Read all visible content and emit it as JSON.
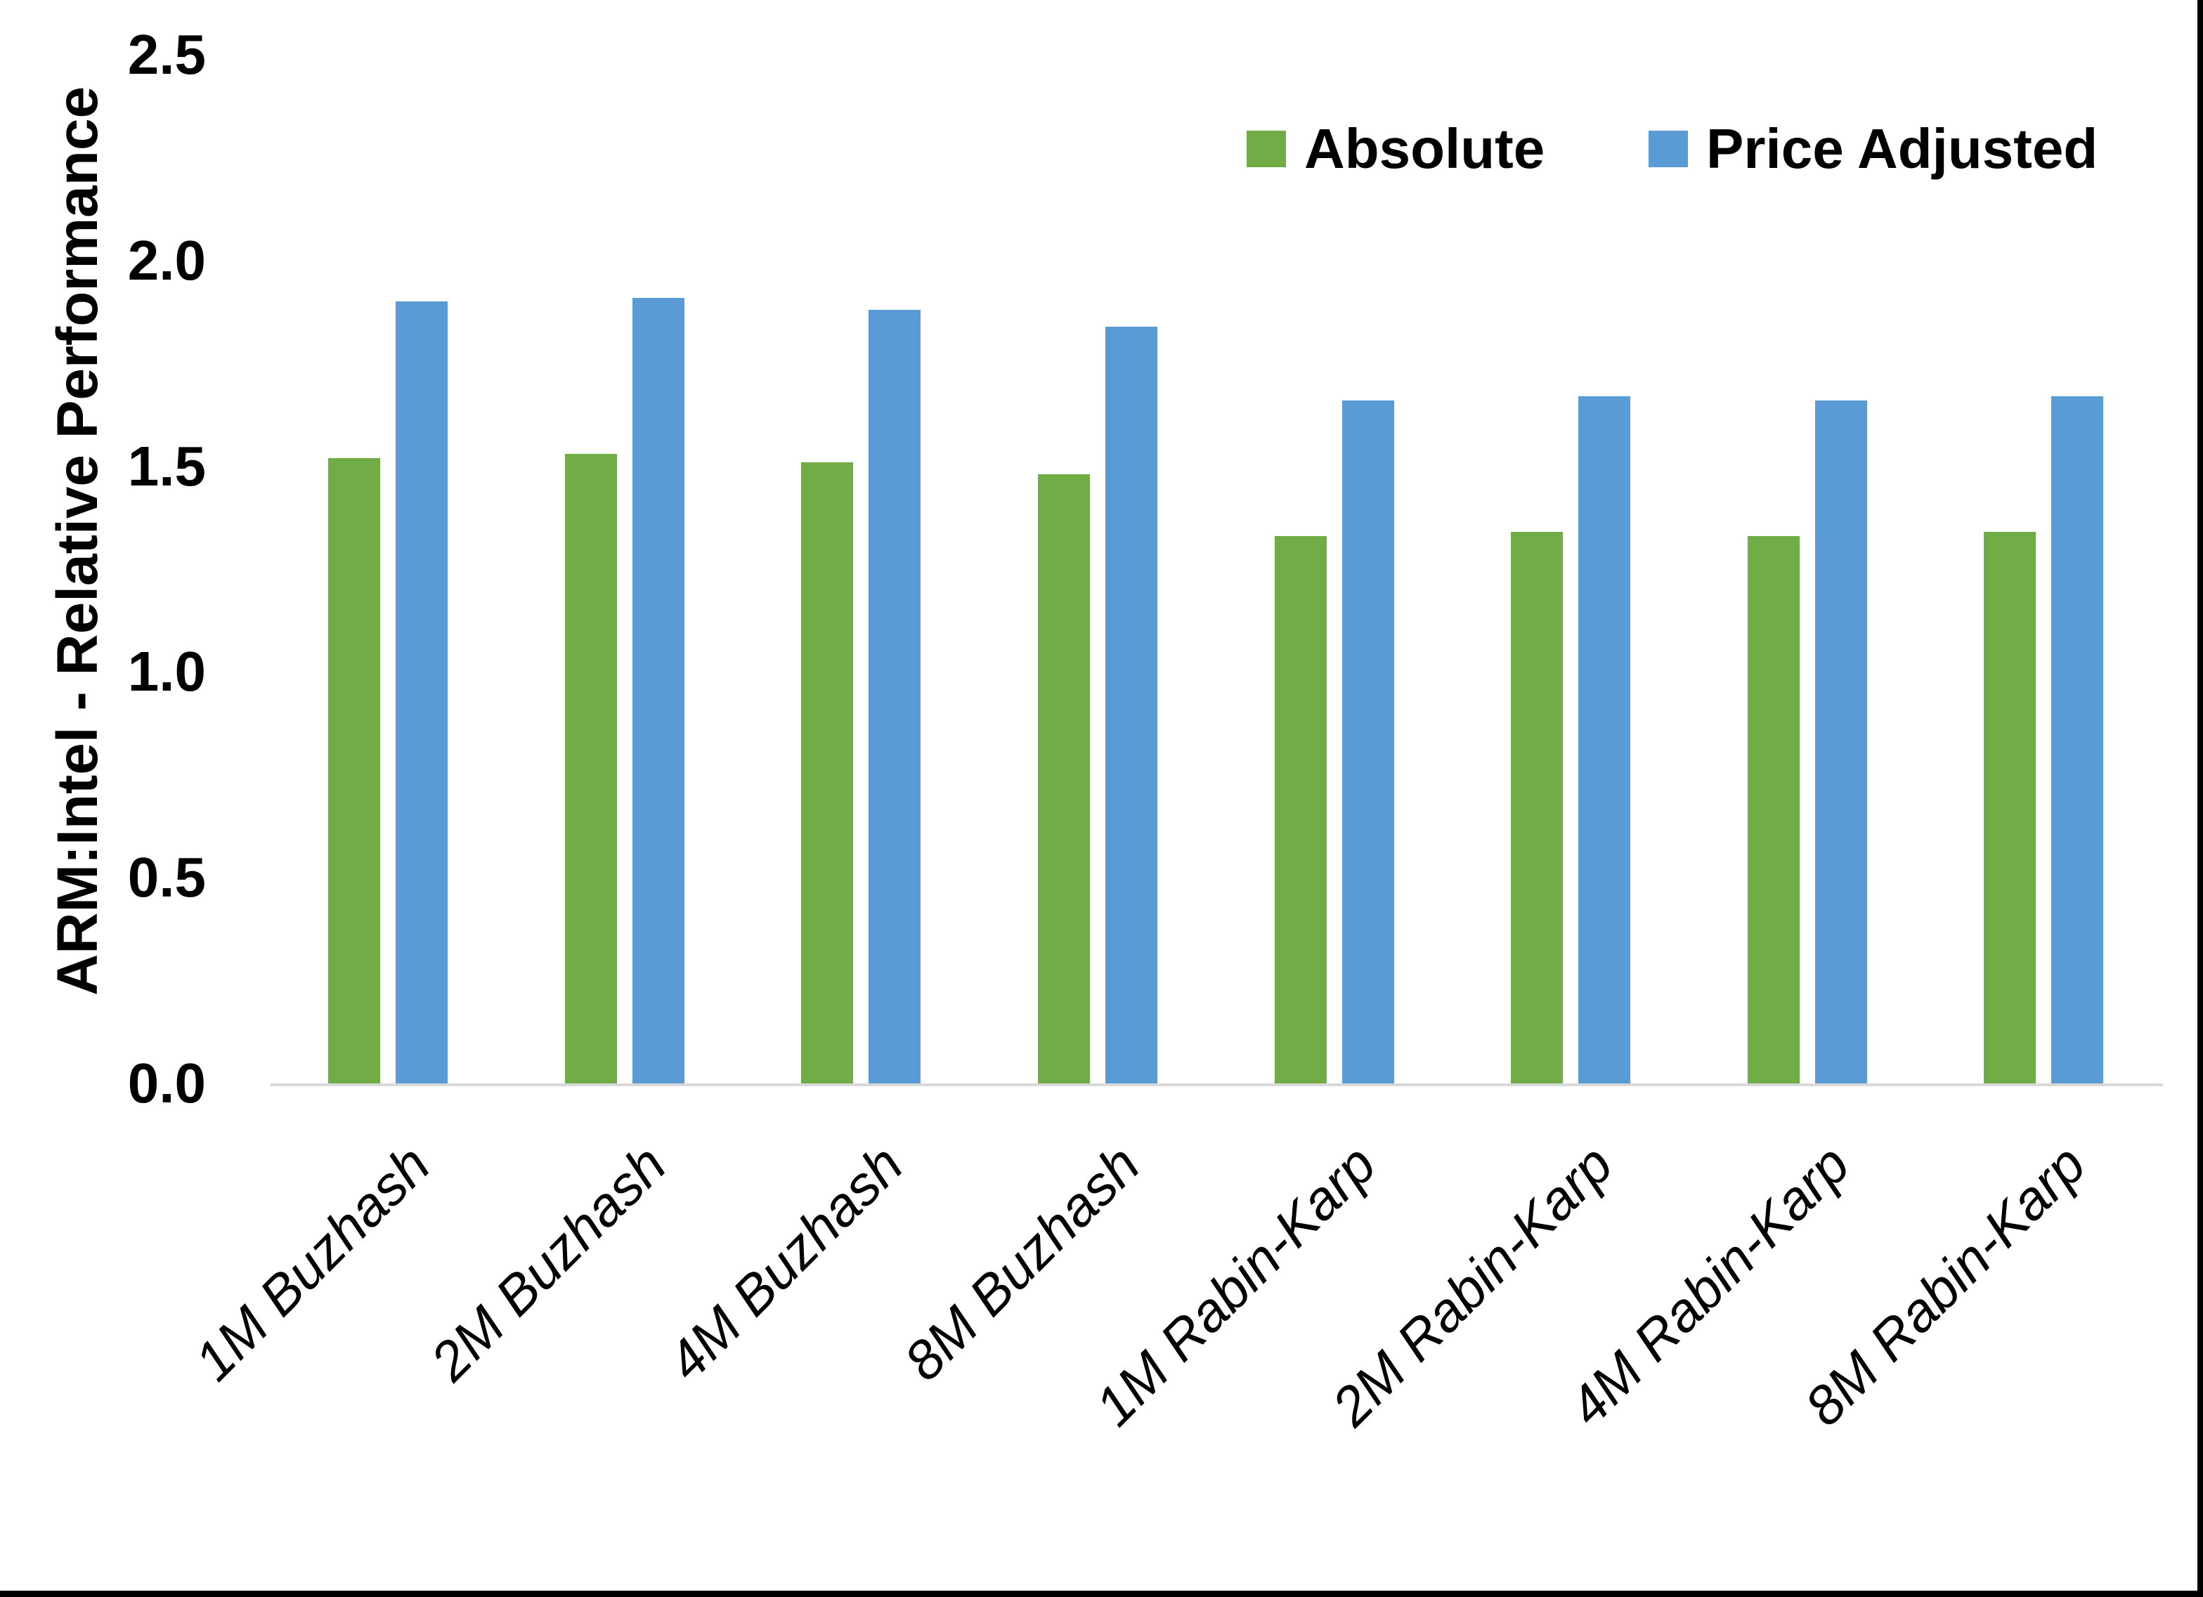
{
  "chart_data": {
    "type": "bar",
    "title": "",
    "xlabel": "",
    "ylabel": "ARM:Intel - Relative Performance",
    "ylim": [
      0,
      2.5
    ],
    "yticks": [
      "0.0",
      "0.5",
      "1.0",
      "1.5",
      "2.0",
      "2.5"
    ],
    "grid": false,
    "legend_position": "top-right",
    "axis_line_color": "#D9D9D9",
    "categories": [
      "1M Buzhash",
      "2M Buzhash",
      "4M Buzhash",
      "8M Buzhash",
      "1M Rabin-Karp",
      "2M Rabin-Karp",
      "4M Rabin-Karp",
      "8M Rabin-Karp"
    ],
    "series": [
      {
        "name": "Absolute",
        "color": "#70AD47",
        "values": [
          1.52,
          1.53,
          1.51,
          1.48,
          1.33,
          1.34,
          1.33,
          1.34
        ]
      },
      {
        "name": "Price Adjusted",
        "color": "#5B9BD5",
        "values": [
          1.9,
          1.91,
          1.88,
          1.84,
          1.66,
          1.67,
          1.66,
          1.67
        ]
      }
    ]
  }
}
